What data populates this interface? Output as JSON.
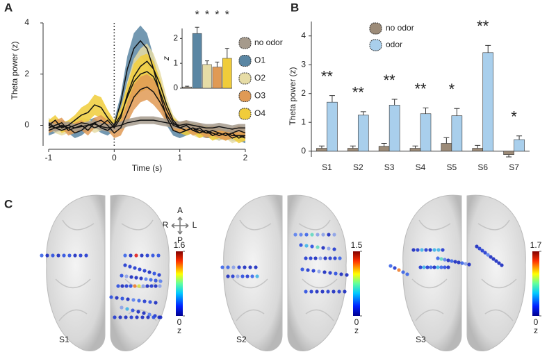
{
  "chart_data": [
    {
      "type": "line",
      "panel": "A",
      "xlabel": "Time (s)",
      "ylabel": "Theta power (z)",
      "x": [
        -1,
        -0.9,
        -0.8,
        -0.7,
        -0.6,
        -0.5,
        -0.4,
        -0.3,
        -0.2,
        -0.1,
        0,
        0.1,
        0.2,
        0.3,
        0.4,
        0.5,
        0.6,
        0.7,
        0.8,
        0.9,
        1,
        1.1,
        1.2,
        1.3,
        1.4,
        1.5,
        1.6,
        1.7,
        1.8,
        1.9,
        2
      ],
      "xlim": [
        -1,
        2
      ],
      "xticks": [
        -1,
        0,
        1,
        2
      ],
      "ylim": [
        -0.8,
        4
      ],
      "yticks": [
        0,
        2,
        4
      ],
      "series": [
        {
          "name": "no odor",
          "color": "#a59a8c",
          "values": [
            0,
            -0.1,
            -0.05,
            0,
            -0.1,
            -0.05,
            0,
            0.05,
            -0.05,
            -0.1,
            -0.05,
            0,
            0.1,
            0.15,
            0.2,
            0.2,
            0.2,
            0.15,
            0.1,
            0.05,
            0,
            0.05,
            0,
            -0.05,
            -0.1,
            -0.1,
            -0.05,
            -0.1,
            -0.15,
            -0.1,
            -0.1
          ],
          "error": [
            0.15,
            0.15,
            0.15,
            0.15,
            0.15,
            0.15,
            0.15,
            0.15,
            0.15,
            0.15,
            0.15,
            0.15,
            0.15,
            0.15,
            0.15,
            0.15,
            0.15,
            0.15,
            0.15,
            0.15,
            0.15,
            0.15,
            0.15,
            0.15,
            0.15,
            0.15,
            0.15,
            0.15,
            0.15,
            0.15,
            0.15
          ]
        },
        {
          "name": "O1",
          "color": "#5a86a3",
          "values": [
            -0.2,
            -0.1,
            0,
            -0.1,
            -0.3,
            -0.2,
            0,
            0.1,
            -0.1,
            -0.2,
            0,
            0.9,
            2.2,
            3.0,
            3.3,
            3.0,
            2.2,
            1.2,
            0.3,
            -0.2,
            -0.3,
            -0.2,
            -0.1,
            -0.2,
            -0.3,
            -0.3,
            -0.4,
            -0.3,
            -0.4,
            -0.4,
            -0.5
          ],
          "error": [
            0.2,
            0.2,
            0.2,
            0.2,
            0.2,
            0.2,
            0.2,
            0.2,
            0.2,
            0.2,
            0.2,
            0.3,
            0.5,
            0.6,
            0.6,
            0.6,
            0.5,
            0.4,
            0.3,
            0.2,
            0.2,
            0.2,
            0.2,
            0.2,
            0.2,
            0.2,
            0.2,
            0.2,
            0.2,
            0.2,
            0.2
          ]
        },
        {
          "name": "O2",
          "color": "#e6dca6",
          "values": [
            0.1,
            -0.1,
            -0.2,
            -0.1,
            0,
            0.1,
            0.05,
            -0.1,
            0,
            0.2,
            -0.1,
            0.3,
            1.2,
            1.9,
            2.3,
            2.5,
            2.2,
            1.6,
            0.8,
            0.2,
            -0.1,
            0,
            -0.2,
            -0.3,
            -0.2,
            -0.3,
            -0.4,
            -0.3,
            -0.5,
            -0.4,
            -0.4
          ],
          "error": [
            0.2,
            0.2,
            0.2,
            0.2,
            0.2,
            0.2,
            0.2,
            0.2,
            0.2,
            0.2,
            0.2,
            0.3,
            0.5,
            0.7,
            0.7,
            0.7,
            0.6,
            0.5,
            0.3,
            0.2,
            0.2,
            0.2,
            0.2,
            0.2,
            0.2,
            0.2,
            0.2,
            0.2,
            0.2,
            0.2,
            0.2
          ]
        },
        {
          "name": "O3",
          "color": "#e09a55",
          "values": [
            -0.1,
            0,
            0.1,
            -0.2,
            -0.1,
            0,
            -0.2,
            0.1,
            0.2,
            0,
            -0.3,
            -0.1,
            0.5,
            1.1,
            1.4,
            1.5,
            1.3,
            0.9,
            0.4,
            0,
            -0.1,
            0,
            -0.2,
            -0.1,
            -0.3,
            -0.2,
            -0.3,
            -0.4,
            -0.3,
            -0.2,
            -0.3
          ],
          "error": [
            0.2,
            0.2,
            0.2,
            0.2,
            0.2,
            0.2,
            0.2,
            0.2,
            0.2,
            0.2,
            0.2,
            0.3,
            0.4,
            0.5,
            0.5,
            0.5,
            0.5,
            0.4,
            0.3,
            0.2,
            0.2,
            0.2,
            0.2,
            0.2,
            0.2,
            0.2,
            0.2,
            0.2,
            0.2,
            0.2,
            0.2
          ]
        },
        {
          "name": "O4",
          "color": "#f0cc3a",
          "values": [
            0,
            0.2,
            -0.1,
            0,
            0.2,
            0.4,
            0.5,
            0.8,
            0.7,
            0.3,
            0,
            0.4,
            1.1,
            1.7,
            2.0,
            2.1,
            1.9,
            1.3,
            0.6,
            0.1,
            -0.1,
            -0.2,
            -0.1,
            -0.3,
            -0.2,
            -0.4,
            -0.3,
            -0.4,
            -0.3,
            -0.5,
            -0.4
          ],
          "error": [
            0.2,
            0.2,
            0.2,
            0.2,
            0.2,
            0.3,
            0.35,
            0.4,
            0.4,
            0.3,
            0.2,
            0.3,
            0.5,
            0.7,
            0.7,
            0.7,
            0.6,
            0.5,
            0.3,
            0.2,
            0.2,
            0.2,
            0.2,
            0.2,
            0.2,
            0.2,
            0.2,
            0.2,
            0.2,
            0.2,
            0.2
          ]
        }
      ]
    },
    {
      "type": "bar",
      "ylabel": "z",
      "categories": [
        "no odor",
        "O1",
        "O2",
        "O3",
        "O4"
      ],
      "values": [
        0.05,
        2.2,
        0.95,
        0.85,
        1.2
      ],
      "errors": [
        0.03,
        0.25,
        0.15,
        0.2,
        0.4
      ],
      "colors": [
        "#a59a8c",
        "#5a86a3",
        "#e6dca6",
        "#e09a55",
        "#f0cc3a"
      ],
      "significance": [
        null,
        "*",
        "*",
        "*",
        "*"
      ],
      "ylim": [
        0,
        2.4
      ],
      "yticks": [
        0,
        1,
        2
      ]
    },
    {
      "type": "groupedbar",
      "panel": "B",
      "ylabel": "Theta power (z)",
      "categories": [
        "S1",
        "S2",
        "S3",
        "S4",
        "S5",
        "S6",
        "S7"
      ],
      "series": [
        {
          "name": "no odor",
          "color": "#9c8b78",
          "values": [
            0.1,
            0.1,
            0.17,
            0.1,
            0.27,
            0.1,
            -0.12
          ],
          "errors": [
            0.08,
            0.08,
            0.1,
            0.08,
            0.2,
            0.1,
            0.08
          ]
        },
        {
          "name": "odor",
          "color": "#a9cfec",
          "values": [
            1.7,
            1.25,
            1.6,
            1.3,
            1.23,
            3.42,
            0.4
          ],
          "errors": [
            0.23,
            0.12,
            0.2,
            0.2,
            0.25,
            0.25,
            0.13
          ]
        }
      ],
      "significance": [
        "**",
        "**",
        "**",
        "**",
        "*",
        "**",
        "*"
      ],
      "ylim": [
        -0.2,
        4.5
      ],
      "yticks": [
        0,
        1,
        2,
        3,
        4
      ]
    }
  ],
  "panel_c": {
    "panel": "C",
    "orientation": [
      "A",
      "R",
      "L",
      "P"
    ],
    "subjects": [
      {
        "label": "S1",
        "colorbar": {
          "ticks": [
            0,
            1.6
          ],
          "label": "z"
        }
      },
      {
        "label": "S2",
        "colorbar": {
          "ticks": [
            0,
            1.5
          ],
          "label": "z"
        }
      },
      {
        "label": "S3",
        "colorbar": {
          "ticks": [
            0,
            1.7
          ],
          "label": "z"
        }
      }
    ]
  }
}
